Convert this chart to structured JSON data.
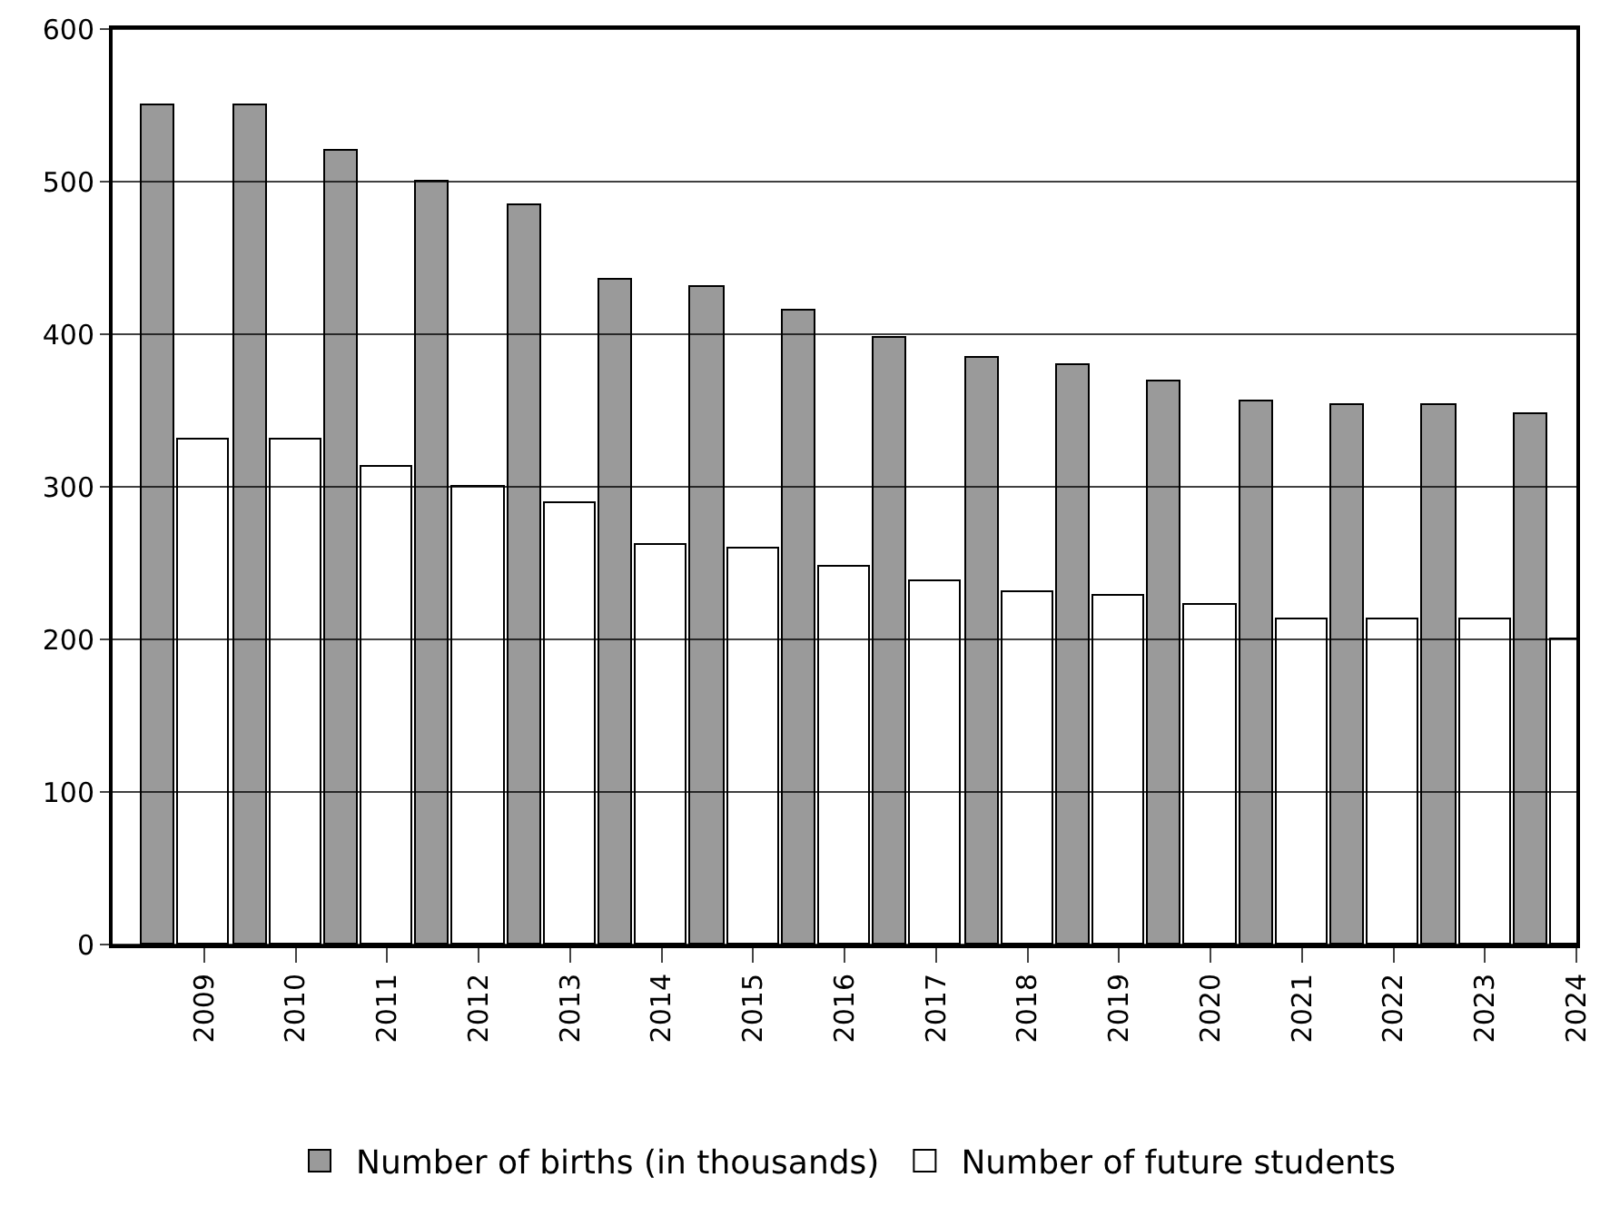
{
  "chart_data": {
    "type": "bar",
    "categories": [
      "2009",
      "2010",
      "2011",
      "2012",
      "2013",
      "2014",
      "2015",
      "2016",
      "2017",
      "2018",
      "2019",
      "2020",
      "2021",
      "2022",
      "2023",
      "2024"
    ],
    "series": [
      {
        "name": "Number of births (in thousands)",
        "color": "#9a9a9a",
        "values": [
          550,
          550,
          520,
          500,
          484,
          436,
          431,
          415,
          398,
          384,
          380,
          369,
          356,
          354,
          354,
          348
        ]
      },
      {
        "name": "Number of future students",
        "color": "#ffffff",
        "values": [
          331,
          331,
          313,
          300,
          289,
          262,
          259,
          248,
          238,
          231,
          228,
          223,
          213,
          213,
          213,
          200
        ]
      }
    ],
    "ylim": [
      0,
      600
    ],
    "yticks": [
      0,
      100,
      200,
      300,
      400,
      500,
      600
    ],
    "grid": "y",
    "legend": "bottom"
  }
}
